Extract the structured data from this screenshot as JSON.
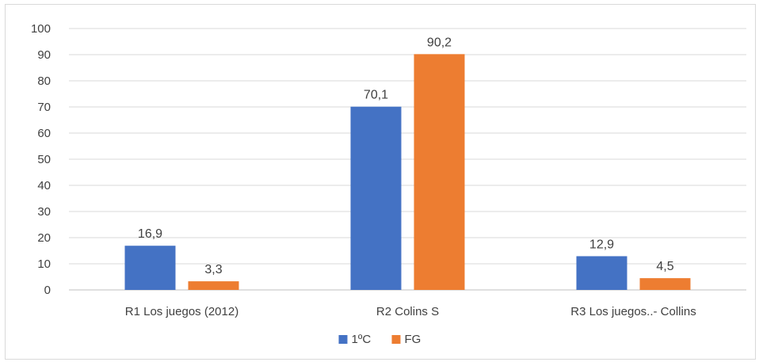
{
  "chart_data": {
    "type": "bar",
    "title": "",
    "xlabel": "",
    "ylabel": "",
    "categories": [
      "R1 Los juegos (2012)",
      "R2 Colins S",
      "R3 Los juegos..- Collins"
    ],
    "series": [
      {
        "name": "1ºC",
        "color": "#4472c4",
        "values": [
          16.9,
          70.1,
          12.9
        ],
        "labels": [
          "16,9",
          "70,1",
          "12,9"
        ]
      },
      {
        "name": "FG",
        "color": "#ed7d31",
        "values": [
          3.3,
          90.2,
          4.5
        ],
        "labels": [
          "3,3",
          "90,2",
          "4,5"
        ]
      }
    ],
    "ylim": [
      0,
      100
    ],
    "yticks": [
      0,
      10,
      20,
      30,
      40,
      50,
      60,
      70,
      80,
      90,
      100
    ],
    "grid": true,
    "legend_position": "bottom"
  }
}
